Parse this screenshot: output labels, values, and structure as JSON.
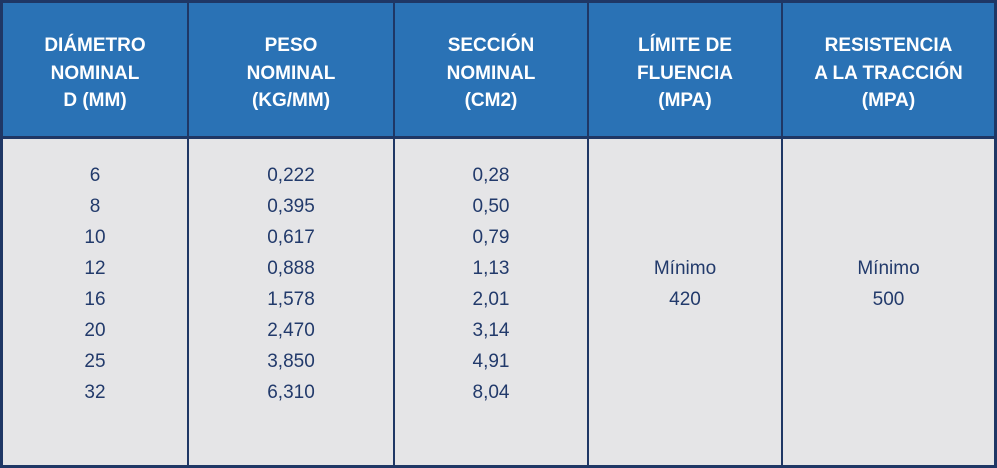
{
  "table": {
    "header": [
      [
        "DIÁMETRO",
        "NOMINAL",
        "D (MM)"
      ],
      [
        "PESO",
        "NOMINAL",
        "(KG/MM)"
      ],
      [
        "SECCIÓN",
        "NOMINAL",
        "(CM2)"
      ],
      [
        "LÍMITE DE",
        "FLUENCIA",
        "(MPA)"
      ],
      [
        "RESISTENCIA",
        "A LA TRACCIÓN",
        "(MPA)"
      ]
    ],
    "body": [
      [
        "6",
        "8",
        "10",
        "12",
        "16",
        "20",
        "25",
        "32"
      ],
      [
        "0,222",
        "0,395",
        "0,617",
        "0,888",
        "1,578",
        "2,470",
        "3,850",
        "6,310"
      ],
      [
        "0,28",
        "0,50",
        "0,79",
        "1,13",
        "2,01",
        "3,14",
        "4,91",
        "8,04"
      ],
      [
        "Mínimo",
        "420"
      ],
      [
        "Mínimo",
        "500"
      ]
    ]
  }
}
